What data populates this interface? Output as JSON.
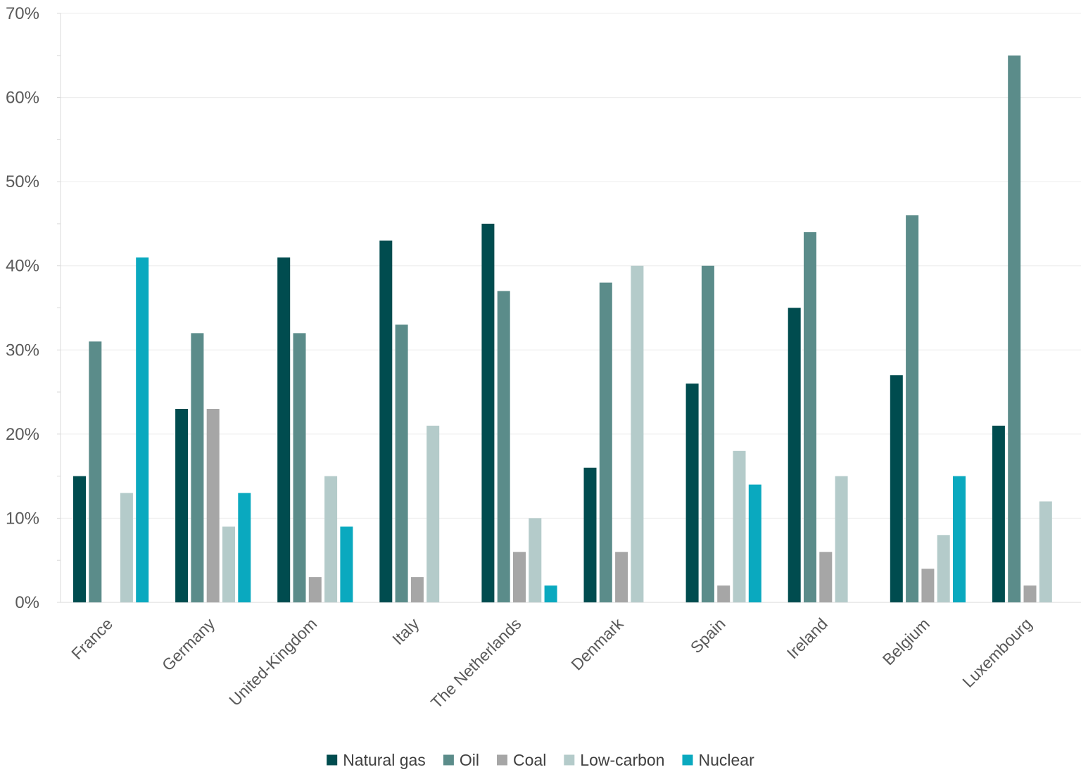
{
  "chart_data": {
    "type": "bar",
    "title": "",
    "xlabel": "",
    "ylabel": "",
    "ylim": [
      0,
      70
    ],
    "y_ticks": [
      "0%",
      "10%",
      "20%",
      "30%",
      "40%",
      "50%",
      "60%",
      "70%"
    ],
    "grid": true,
    "legend_position": "bottom",
    "categories": [
      "France",
      "Germany",
      "United-Kingdom",
      "Italy",
      "The Netherlands",
      "Denmark",
      "Spain",
      "Ireland",
      "Belgium",
      "Luxembourg"
    ],
    "series": [
      {
        "name": "Natural gas",
        "color": "#004c4f",
        "values": [
          15,
          23,
          41,
          43,
          45,
          16,
          26,
          35,
          27,
          21
        ]
      },
      {
        "name": "Oil",
        "color": "#5b8c8a",
        "values": [
          31,
          32,
          32,
          33,
          37,
          38,
          40,
          44,
          46,
          65
        ]
      },
      {
        "name": "Coal",
        "color": "#a6a6a6",
        "values": [
          0,
          23,
          3,
          3,
          6,
          6,
          2,
          6,
          4,
          2
        ]
      },
      {
        "name": "Low-carbon",
        "color": "#b4cbca",
        "values": [
          13,
          9,
          15,
          21,
          10,
          40,
          18,
          15,
          8,
          12
        ]
      },
      {
        "name": "Nuclear",
        "color": "#0aa9bf",
        "values": [
          41,
          13,
          9,
          0,
          2,
          0,
          14,
          0,
          15,
          0
        ]
      }
    ]
  }
}
